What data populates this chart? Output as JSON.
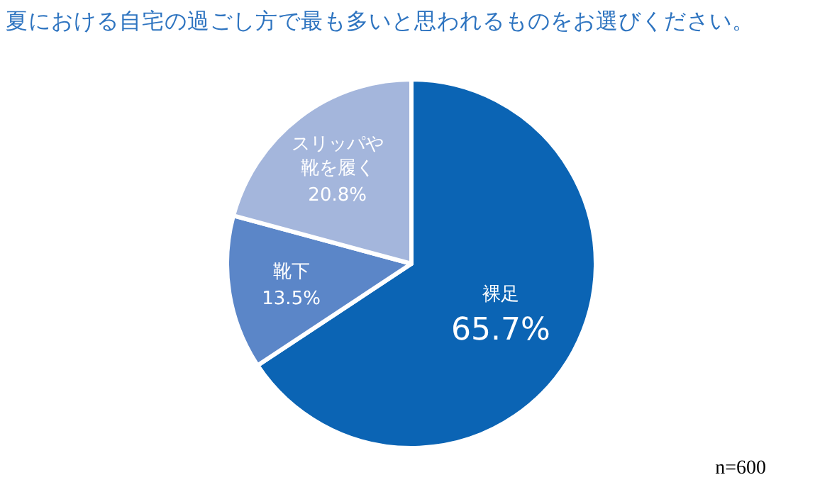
{
  "chart_data": {
    "type": "pie",
    "title": "夏における自宅の過ごし方で最も多いと思われるものをお選びください。",
    "categories": [
      "裸足",
      "靴下",
      "スリッパや靴を履く"
    ],
    "values": [
      65.7,
      13.5,
      20.8
    ],
    "value_labels": [
      "65.7%",
      "13.5%",
      "20.8%"
    ],
    "colors": [
      "#0b64b4",
      "#5b86c8",
      "#a4b6dc"
    ],
    "annotations": [
      "n=600"
    ]
  }
}
